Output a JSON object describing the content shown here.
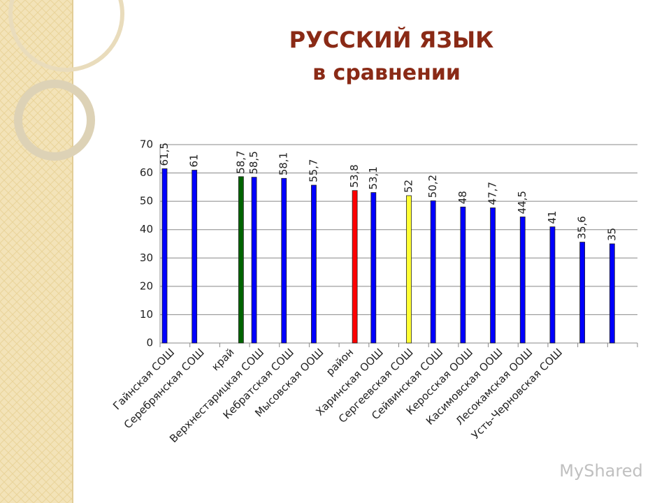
{
  "chart_data": {
    "type": "bar",
    "title": "РУССКИЙ ЯЗЫК",
    "subtitle": "в сравнении",
    "watermark": "MyShared",
    "categories": [
      "Гайнская СОШ",
      "Серебрянская СОШ",
      "край",
      "Верхнестарицкая СОШ",
      "Кебратская СОШ",
      "Мысовская ООШ",
      "район",
      "Харинская ООШ",
      "Сергеевская СОШ",
      "Сейвинская СОШ",
      "Керосская ООШ",
      "Касимовская ООШ",
      "Лесокамская ООШ",
      "Усть-Черновская СОШ",
      null,
      null
    ],
    "series": [
      {
        "color": "#0000ff",
        "values": [
          61.5,
          61,
          null,
          58.5,
          58.1,
          55.7,
          null,
          53.1,
          null,
          50.2,
          48,
          47.7,
          44.5,
          41,
          35.6,
          35
        ],
        "value_labels": [
          "61,5",
          "61",
          null,
          "58,5",
          "58,1",
          "55,7",
          null,
          "53,1",
          null,
          "50,2",
          "48",
          "47,7",
          "44,5",
          "41",
          "35,6",
          "35"
        ]
      },
      {
        "color": "#ffff33",
        "values": [
          null,
          null,
          null,
          null,
          null,
          null,
          null,
          null,
          52,
          null,
          null,
          null,
          null,
          null,
          null,
          null
        ],
        "value_labels": [
          null,
          null,
          null,
          null,
          null,
          null,
          null,
          null,
          "52",
          null,
          null,
          null,
          null,
          null,
          null,
          null
        ]
      },
      {
        "color": "#ff0000",
        "values": [
          null,
          null,
          null,
          null,
          null,
          null,
          53.8,
          null,
          null,
          null,
          null,
          null,
          null,
          null,
          null,
          null
        ],
        "value_labels": [
          null,
          null,
          null,
          null,
          null,
          null,
          "53,8",
          null,
          null,
          null,
          null,
          null,
          null,
          null,
          null,
          null
        ]
      },
      {
        "color": "#006400",
        "values": [
          null,
          null,
          58.7,
          null,
          null,
          null,
          null,
          null,
          null,
          null,
          null,
          null,
          null,
          null,
          null,
          null
        ],
        "value_labels": [
          null,
          null,
          "58,7",
          null,
          null,
          null,
          null,
          null,
          null,
          null,
          null,
          null,
          null,
          null,
          null,
          null
        ]
      }
    ],
    "ylim": [
      0,
      70
    ],
    "yticks": [
      0,
      10,
      20,
      30,
      40,
      50,
      60,
      70
    ],
    "grid": true
  }
}
